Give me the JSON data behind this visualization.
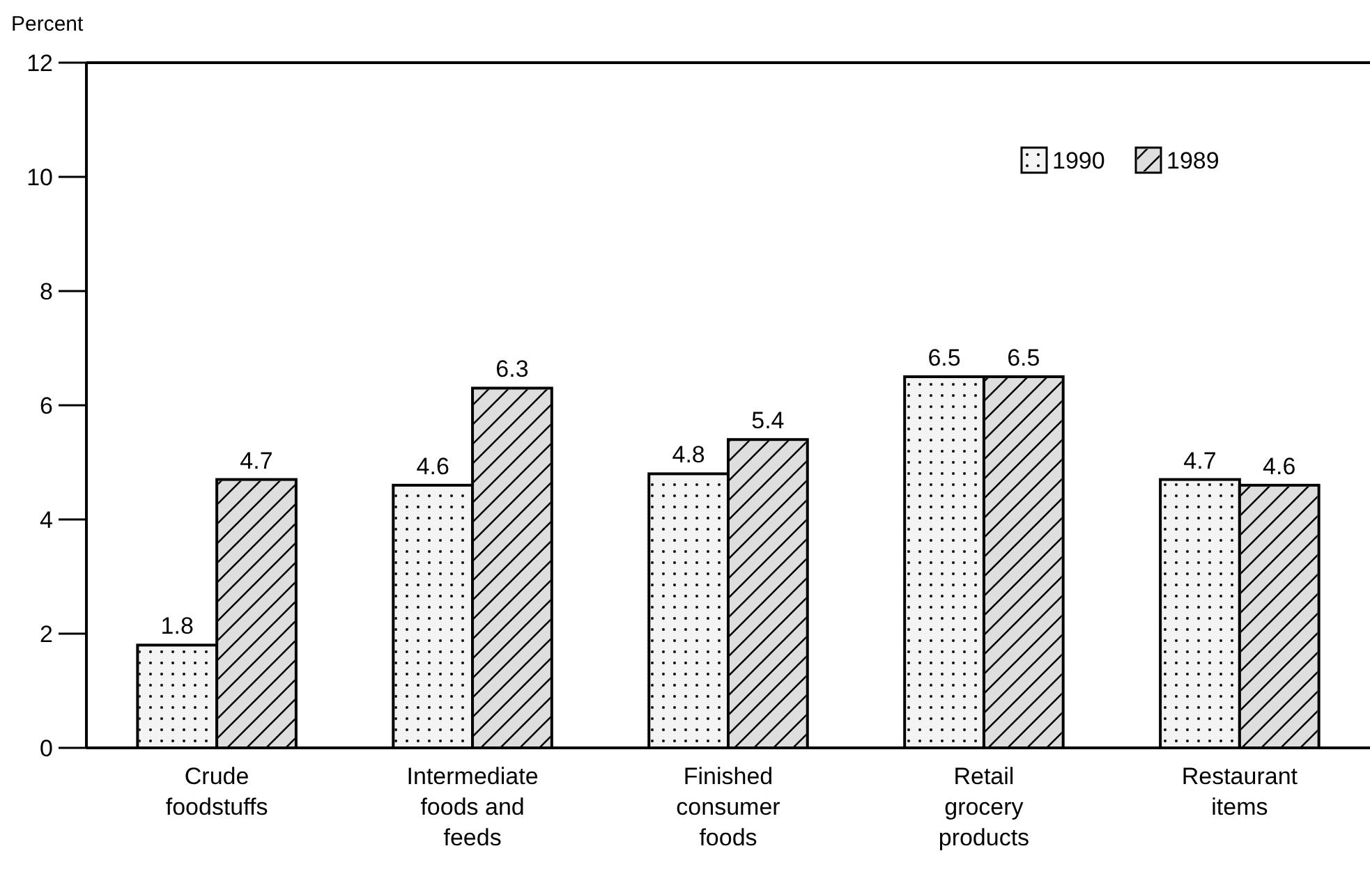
{
  "chart_data": {
    "type": "bar",
    "ylabel": "Percent",
    "categories": [
      "Crude\nfoodstuffs",
      "Intermediate\nfoods and\nfeeds",
      "Finished\nconsumer\nfoods",
      "Retail\ngrocery\nproducts",
      "Restaurant\nitems"
    ],
    "series": [
      {
        "name": "1990",
        "color": "#f4f4f4",
        "values": [
          1.8,
          4.6,
          4.8,
          6.5,
          4.7
        ]
      },
      {
        "name": "1989",
        "color": "#dedede",
        "values": [
          4.7,
          6.3,
          5.4,
          6.5,
          4.6
        ]
      }
    ],
    "ylim": [
      0,
      12
    ],
    "yticks": [
      0,
      2,
      4,
      6,
      8,
      10,
      12
    ],
    "grid": false,
    "legend": "top right",
    "data_labels": true
  }
}
